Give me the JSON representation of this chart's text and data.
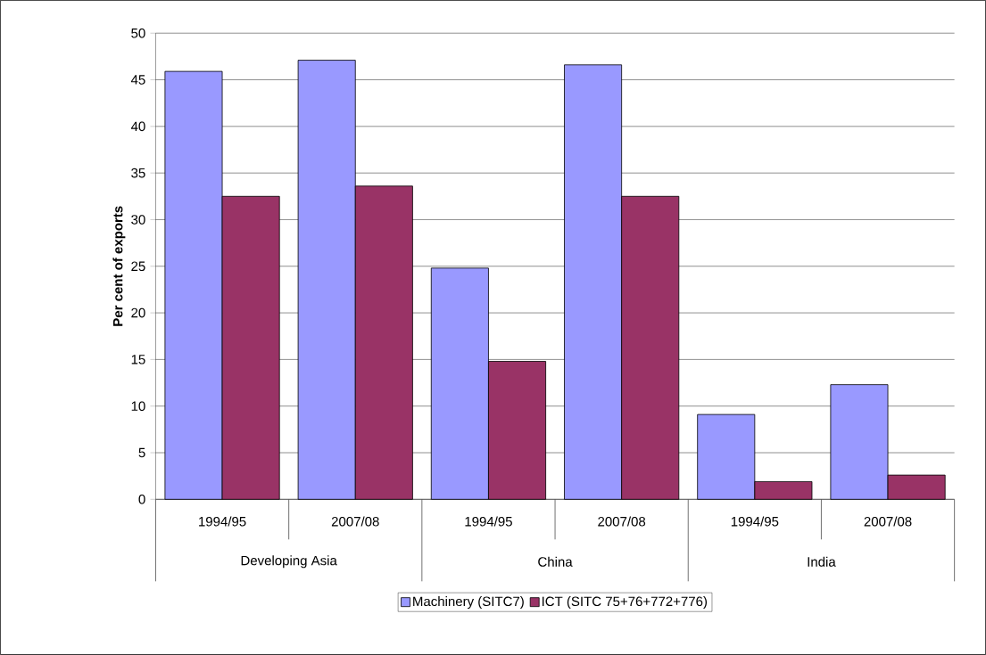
{
  "chart_data": {
    "type": "bar",
    "ylabel": "Per cent of exports",
    "categories": [
      "1994/95",
      "2007/08",
      "1994/95",
      "2007/08",
      "1994/95",
      "2007/08"
    ],
    "series": [
      {
        "name": "Machinery (SITC7)",
        "color": "#9999ff",
        "values": [
          45.9,
          47.1,
          24.8,
          46.6,
          9.1,
          12.3
        ]
      },
      {
        "name": "ICT (SITC 75+76+772+776)",
        "color": "#993366",
        "values": [
          32.5,
          33.6,
          14.8,
          32.5,
          1.9,
          2.6
        ]
      }
    ],
    "annotations": [
      "Developing Asia",
      "China",
      "India"
    ],
    "ylim": [
      0,
      50
    ],
    "yticks": [
      0,
      5,
      10,
      15,
      20,
      25,
      30,
      35,
      40,
      45,
      50
    ],
    "grid": "y",
    "legend": "bottom"
  }
}
